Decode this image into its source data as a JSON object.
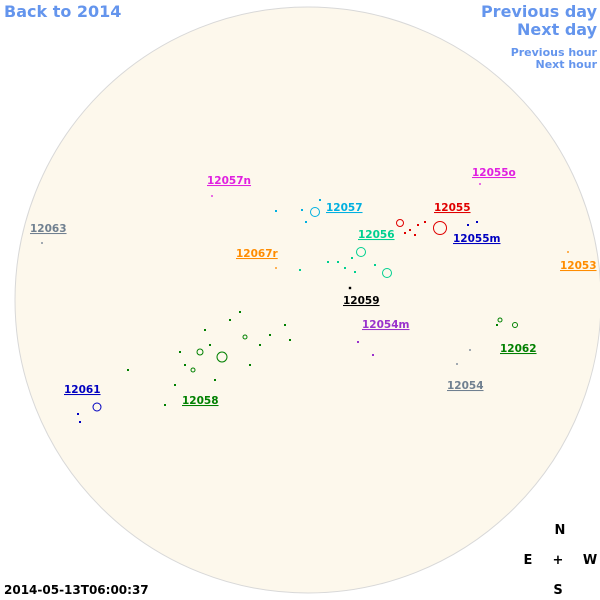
{
  "nav": {
    "back": "Back to 2014",
    "previous_day": "Previous day",
    "next_day": "Next day",
    "previous_hour": "Previous hour",
    "next_hour": "Next hour"
  },
  "timestamp": "2014-05-13T06:00:37",
  "compass": {
    "north": "N",
    "east": "E",
    "center": "+",
    "west": "W",
    "south": "S"
  },
  "groups": [
    {
      "label": "12057n",
      "color": "#e020e0"
    },
    {
      "label": "12063",
      "color": "#708090"
    },
    {
      "label": "12057",
      "color": "#00b0e0"
    },
    {
      "label": "12055",
      "color": "#e00000"
    },
    {
      "label": "12055o",
      "color": "#e020e0"
    },
    {
      "label": "12055m",
      "color": "#0000c0"
    },
    {
      "label": "12056",
      "color": "#00d090"
    },
    {
      "label": "12067r",
      "color": "#ff8c00"
    },
    {
      "label": "12053",
      "color": "#ff8c00"
    },
    {
      "label": "12059",
      "color": "#000000"
    },
    {
      "label": "12054m",
      "color": "#9932cc"
    },
    {
      "label": "12062",
      "color": "#008000"
    },
    {
      "label": "12054",
      "color": "#708090"
    },
    {
      "label": "12061",
      "color": "#0000c0"
    },
    {
      "label": "12058",
      "color": "#008000"
    }
  ]
}
